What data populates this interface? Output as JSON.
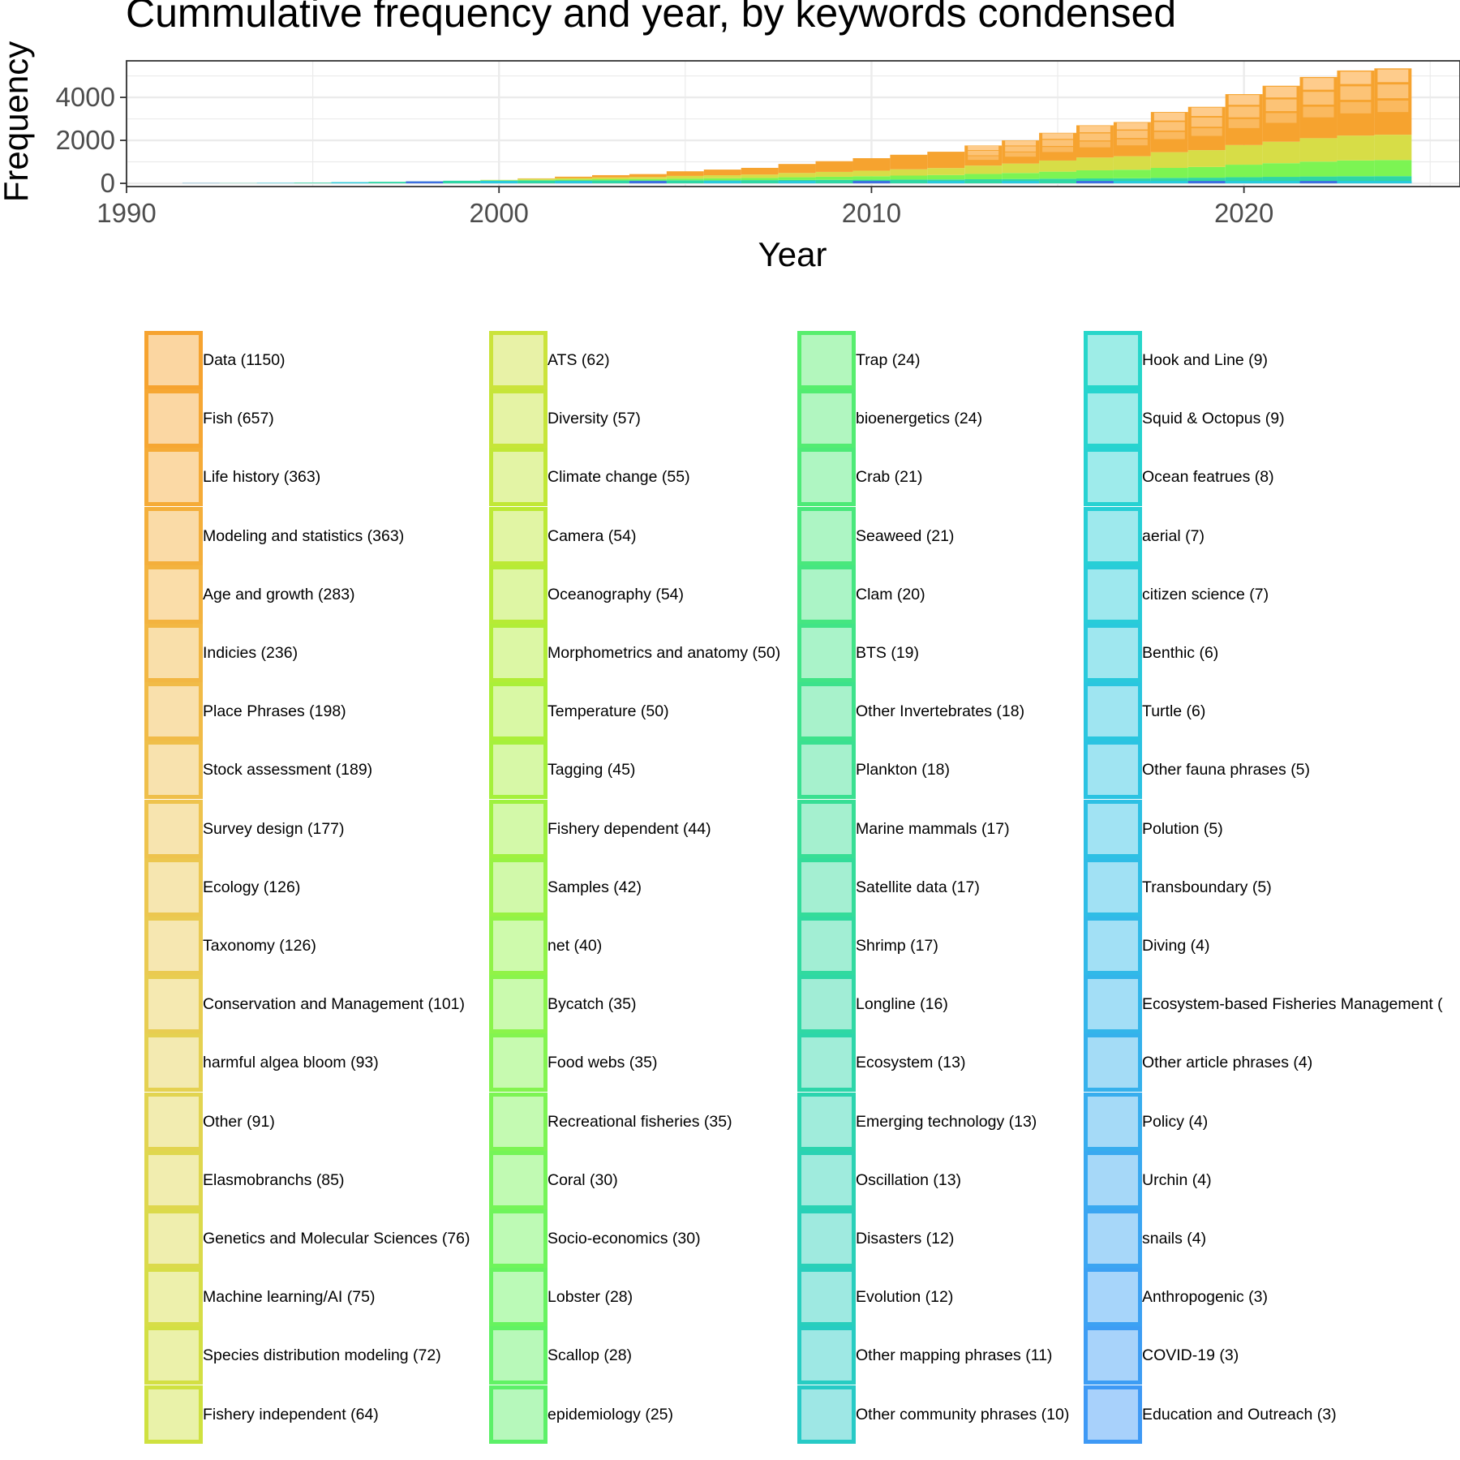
{
  "chart_data": {
    "type": "area",
    "title": "Cummulative frequency and year, by keywords condensed",
    "xlabel": "Year",
    "ylabel": "Frequency",
    "xlim": [
      1990,
      2025.8
    ],
    "ylim": [
      -150,
      5700
    ],
    "x_ticks": [
      1990,
      2000,
      2010,
      2020
    ],
    "y_ticks": [
      0,
      2000,
      4000
    ],
    "grid": true,
    "legend_position": "bottom",
    "years": [
      1992,
      1993,
      1994,
      1995,
      1996,
      1997,
      1998,
      1999,
      2000,
      2001,
      2002,
      2003,
      2004,
      2005,
      2006,
      2007,
      2008,
      2009,
      2010,
      2011,
      2012,
      2013,
      2014,
      2015,
      2016,
      2017,
      2018,
      2019,
      2020,
      2021,
      2022,
      2023,
      2024
    ],
    "total_cumulative_frequency": [
      8,
      10,
      20,
      30,
      50,
      70,
      90,
      120,
      160,
      230,
      310,
      380,
      430,
      560,
      640,
      720,
      900,
      1030,
      1170,
      1330,
      1470,
      1760,
      2000,
      2350,
      2700,
      2850,
      3320,
      3560,
      4150,
      4540,
      4950,
      5250,
      5350
    ],
    "series": [
      {
        "name": "Data (1150)",
        "color": "#f6a32f"
      },
      {
        "name": "Fish (657)",
        "color": "#f6a733"
      },
      {
        "name": "Life history (363)",
        "color": "#f5ab37"
      },
      {
        "name": "Modeling and statistics (363)",
        "color": "#f4af3b"
      },
      {
        "name": "Age and growth (283)",
        "color": "#f3b33f"
      },
      {
        "name": "Indicies (236)",
        "color": "#f2b743"
      },
      {
        "name": "Place Phrases (198)",
        "color": "#f1bb47"
      },
      {
        "name": "Stock assessment (189)",
        "color": "#efbf4a"
      },
      {
        "name": "Survey design (177)",
        "color": "#eec34d"
      },
      {
        "name": "Ecology (126)",
        "color": "#ecc74f"
      },
      {
        "name": "Taxonomy (126)",
        "color": "#eaca51"
      },
      {
        "name": "Conservation and Management (101)",
        "color": "#e8cd51"
      },
      {
        "name": "harmful algea bloom (93)",
        "color": "#e5d151"
      },
      {
        "name": "Other (91)",
        "color": "#e2d450"
      },
      {
        "name": "Elasmobranchs (85)",
        "color": "#dfd74e"
      },
      {
        "name": "Genetics and Molecular Sciences (76)",
        "color": "#dbda4b"
      },
      {
        "name": "Machine learning/AI (75)",
        "color": "#d7dd47"
      },
      {
        "name": "Species distribution modeling (72)",
        "color": "#d3df43"
      },
      {
        "name": "Fishery independent (64)",
        "color": "#cfe13f"
      },
      {
        "name": "ATS (62)",
        "color": "#cbe33b"
      },
      {
        "name": "Diversity (57)",
        "color": "#c6e538"
      },
      {
        "name": "Climate change (55)",
        "color": "#c1e736"
      },
      {
        "name": "Camera (54)",
        "color": "#bce935"
      },
      {
        "name": "Oceanography (54)",
        "color": "#b6eb35"
      },
      {
        "name": "Morphometrics and anatomy (50)",
        "color": "#b1ed36"
      },
      {
        "name": "Temperature (50)",
        "color": "#abef38"
      },
      {
        "name": "Tagging (45)",
        "color": "#a5f03b"
      },
      {
        "name": "Fishery dependent (44)",
        "color": "#9ef13f"
      },
      {
        "name": "Samples (42)",
        "color": "#98f243"
      },
      {
        "name": "net (40)",
        "color": "#91f347"
      },
      {
        "name": "Bycatch (35)",
        "color": "#8af44b"
      },
      {
        "name": "Food webs (35)",
        "color": "#83f44f"
      },
      {
        "name": "Recreational fisheries (35)",
        "color": "#7cf453"
      },
      {
        "name": "Coral (30)",
        "color": "#75f457"
      },
      {
        "name": "Socio-economics (30)",
        "color": "#6ef45b"
      },
      {
        "name": "Lobster (28)",
        "color": "#67f35f"
      },
      {
        "name": "Scallop (28)",
        "color": "#61f264"
      },
      {
        "name": "epidemiology (25)",
        "color": "#5cf068"
      },
      {
        "name": "Trap (24)",
        "color": "#57ee6d"
      },
      {
        "name": "bioenergetics (24)",
        "color": "#52ec72"
      },
      {
        "name": "Crab (21)",
        "color": "#4dea77"
      },
      {
        "name": "Seaweed (21)",
        "color": "#49e87c"
      },
      {
        "name": "Clam (20)",
        "color": "#45e681"
      },
      {
        "name": "BTS (19)",
        "color": "#41e486"
      },
      {
        "name": "Other Invertebrates (18)",
        "color": "#3de28b"
      },
      {
        "name": "Plankton (18)",
        "color": "#3ae090"
      },
      {
        "name": "Marine mammals (17)",
        "color": "#37de95"
      },
      {
        "name": "Satellite data (17)",
        "color": "#34dc9a"
      },
      {
        "name": "Shrimp (17)",
        "color": "#31da9f"
      },
      {
        "name": "Longline (16)",
        "color": "#2fd8a4"
      },
      {
        "name": "Ecosystem (13)",
        "color": "#2dd6a9"
      },
      {
        "name": "Emerging technology (13)",
        "color": "#2bd4ae"
      },
      {
        "name": "Oscillation (13)",
        "color": "#2ad2b3"
      },
      {
        "name": "Disasters (12)",
        "color": "#29d0b8"
      },
      {
        "name": "Evolution (12)",
        "color": "#28cebd"
      },
      {
        "name": "Other mapping phrases (11)",
        "color": "#27ccc2"
      },
      {
        "name": "Other community phrases (10)",
        "color": "#27cac6"
      },
      {
        "name": "Hook and Line (9)",
        "color": "#27d6ca"
      },
      {
        "name": "Squid & Octopus (9)",
        "color": "#27d4cf"
      },
      {
        "name": "Ocean featrues (8)",
        "color": "#27d2d2"
      },
      {
        "name": "aerial (7)",
        "color": "#27cfd6"
      },
      {
        "name": "citizen science (7)",
        "color": "#28ccd9"
      },
      {
        "name": "Benthic (6)",
        "color": "#29c9dc"
      },
      {
        "name": "Turtle (6)",
        "color": "#2ac6df"
      },
      {
        "name": "Other fauna phrases (5)",
        "color": "#2bc3e2"
      },
      {
        "name": "Polution (5)",
        "color": "#2dc0e4"
      },
      {
        "name": "Transboundary (5)",
        "color": "#2fbde6"
      },
      {
        "name": "Diving (4)",
        "color": "#31b9e8"
      },
      {
        "name": "Ecosystem-based Fisheries Management (",
        "color": "#33b5ea"
      },
      {
        "name": "Other article phrases (4)",
        "color": "#35b1ec"
      },
      {
        "name": "Policy (4)",
        "color": "#37adee"
      },
      {
        "name": "Urchin (4)",
        "color": "#39a9f0"
      },
      {
        "name": "snails (4)",
        "color": "#3ba5f2"
      },
      {
        "name": "Anthropogenic (3)",
        "color": "#3ca1f3"
      },
      {
        "name": "COVID-19 (3)",
        "color": "#3d9df4"
      },
      {
        "name": "Education and Outreach (3)",
        "color": "#3e99f5"
      }
    ]
  }
}
